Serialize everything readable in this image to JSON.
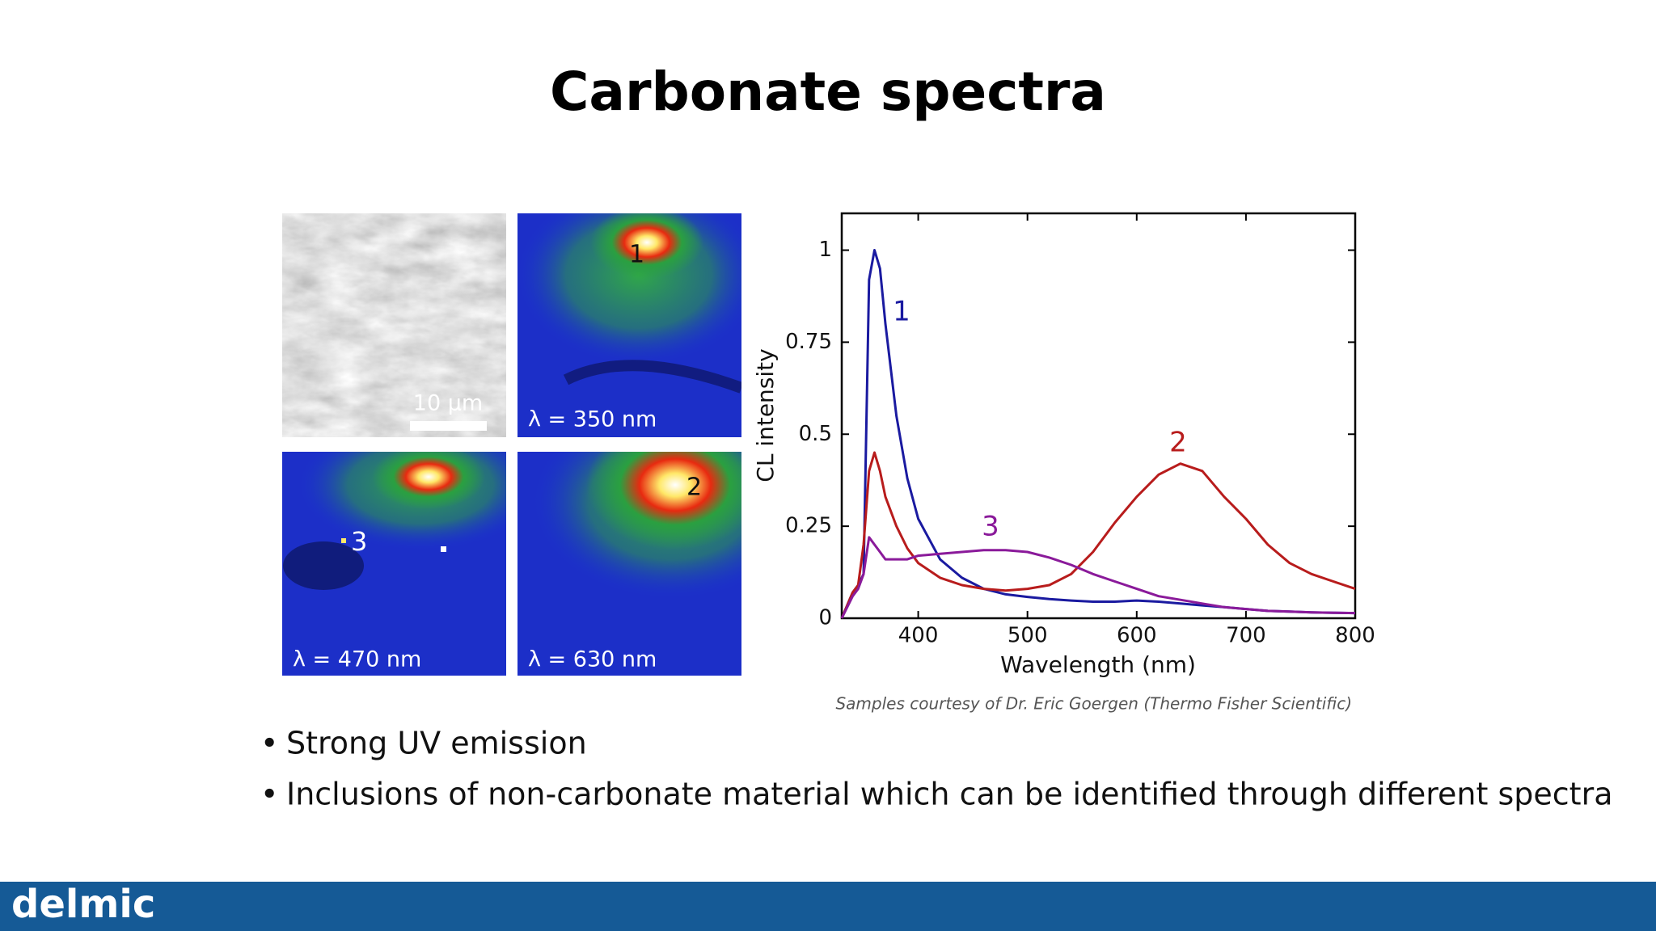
{
  "title": "Carbonate spectra",
  "scale_bar": "10 µm",
  "panels": [
    {
      "label": "λ = 350 nm",
      "marker": "1"
    },
    {
      "label": "λ = 470 nm",
      "marker": "3"
    },
    {
      "label": "λ = 630 nm",
      "marker": "2"
    }
  ],
  "chart_data": {
    "type": "line",
    "x_label": "Wavelength (nm)",
    "y_label": "CL intensity",
    "x": [
      330,
      340,
      345,
      350,
      355,
      360,
      365,
      370,
      380,
      390,
      400,
      420,
      440,
      460,
      480,
      500,
      520,
      540,
      560,
      580,
      600,
      620,
      640,
      660,
      680,
      700,
      720,
      740,
      760,
      780,
      800
    ],
    "series": [
      {
        "name": "1",
        "color": "#1a1aa0",
        "values": [
          0,
          0.07,
          0.09,
          0.12,
          0.92,
          1.0,
          0.95,
          0.8,
          0.55,
          0.38,
          0.27,
          0.16,
          0.11,
          0.08,
          0.065,
          0.058,
          0.052,
          0.048,
          0.045,
          0.045,
          0.048,
          0.045,
          0.04,
          0.035,
          0.03,
          0.025,
          0.02,
          0.018,
          0.016,
          0.015,
          0.014
        ]
      },
      {
        "name": "2",
        "color": "#b81c1c",
        "values": [
          0,
          0.07,
          0.09,
          0.2,
          0.4,
          0.45,
          0.4,
          0.33,
          0.25,
          0.19,
          0.15,
          0.11,
          0.09,
          0.08,
          0.075,
          0.08,
          0.09,
          0.12,
          0.18,
          0.26,
          0.33,
          0.39,
          0.42,
          0.4,
          0.33,
          0.27,
          0.2,
          0.15,
          0.12,
          0.1,
          0.08
        ]
      },
      {
        "name": "3",
        "color": "#8a1a9a",
        "values": [
          0,
          0.06,
          0.08,
          0.12,
          0.22,
          0.2,
          0.18,
          0.16,
          0.16,
          0.16,
          0.17,
          0.175,
          0.18,
          0.185,
          0.185,
          0.18,
          0.165,
          0.145,
          0.12,
          0.1,
          0.08,
          0.06,
          0.05,
          0.04,
          0.03,
          0.025,
          0.02,
          0.018,
          0.016,
          0.015,
          0.014
        ]
      }
    ],
    "xlim": [
      330,
      800
    ],
    "ylim": [
      0,
      1.1
    ],
    "xticks": [
      400,
      500,
      600,
      700,
      800
    ],
    "yticks": [
      0,
      0.25,
      0.5,
      0.75,
      1
    ],
    "grid": false
  },
  "caption": "Samples courtesy of Dr. Eric Goergen (Thermo Fisher Scientific)",
  "bullets": [
    "Strong UV emission",
    "Inclusions of non-carbonate material which can be identified through different spectra"
  ],
  "footer": {
    "logo": "delmic"
  }
}
